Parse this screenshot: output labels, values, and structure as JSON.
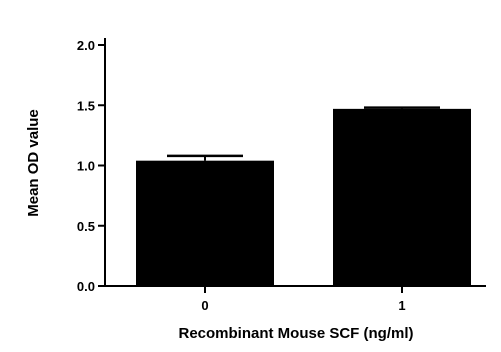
{
  "chart_data": {
    "type": "bar",
    "categories": [
      "0",
      "1"
    ],
    "values": [
      1.04,
      1.47
    ],
    "errors": [
      0.04,
      0.01
    ],
    "xlabel": "Recombinant Mouse SCF (ng/ml)",
    "ylabel": "Mean OD value",
    "ylim": [
      0,
      2.0
    ],
    "yticks": [
      "0.0",
      "0.5",
      "1.0",
      "1.5",
      "2.0"
    ],
    "grid": false,
    "bar_color": "#000000"
  }
}
